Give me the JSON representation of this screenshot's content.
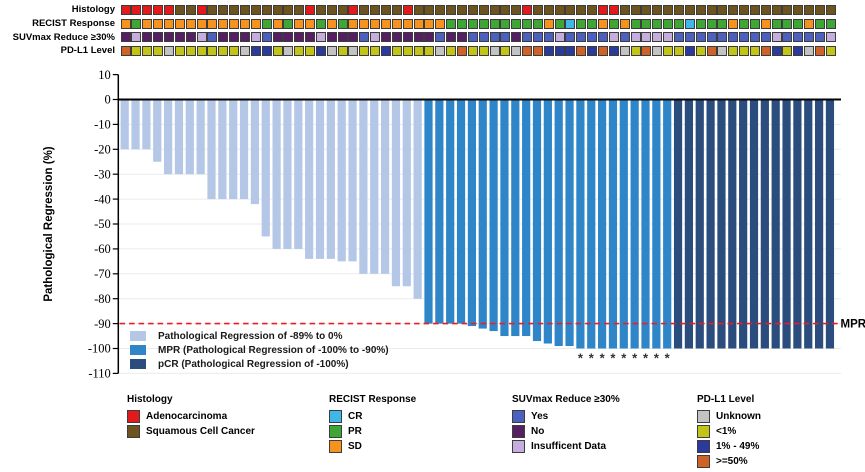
{
  "tracks": {
    "rows": [
      {
        "label": "Histology",
        "legend": 0,
        "values": [
          "A",
          "A",
          "A",
          "A",
          "A",
          "S",
          "S",
          "A",
          "S",
          "S",
          "S",
          "S",
          "S",
          "S",
          "S",
          "S",
          "S",
          "A",
          "S",
          "S",
          "S",
          "A",
          "S",
          "S",
          "S",
          "S",
          "A",
          "S",
          "S",
          "S",
          "S",
          "S",
          "S",
          "S",
          "S",
          "S",
          "S",
          "A",
          "S",
          "S",
          "S",
          "S",
          "S",
          "S",
          "A",
          "A",
          "S",
          "S",
          "S",
          "S",
          "S",
          "S",
          "S",
          "S",
          "S",
          "S",
          "S",
          "S",
          "S",
          "S",
          "S",
          "S",
          "S",
          "S",
          "S",
          "S"
        ]
      },
      {
        "label": "RECIST Response",
        "legend": 1,
        "values": [
          "SD",
          "PR",
          "SD",
          "SD",
          "SD",
          "SD",
          "SD",
          "SD",
          "SD",
          "SD",
          "SD",
          "SD",
          "SD",
          "PR",
          "SD",
          "PR",
          "SD",
          "SD",
          "PR",
          "SD",
          "PR",
          "SD",
          "SD",
          "SD",
          "SD",
          "SD",
          "SD",
          "SD",
          "SD",
          "SD",
          "PR",
          "PR",
          "PR",
          "PR",
          "PR",
          "PR",
          "PR",
          "PR",
          "PR",
          "SD",
          "PR",
          "CR",
          "PR",
          "PR",
          "SD",
          "PR",
          "SD",
          "PR",
          "PR",
          "PR",
          "PR",
          "PR",
          "CR",
          "PR",
          "PR",
          "PR",
          "SD",
          "PR",
          "PR",
          "SD",
          "PR",
          "PR",
          "PR",
          "SD",
          "PR",
          "PR"
        ]
      },
      {
        "label": "SUVmax Reduce ≥30%",
        "legend": 2,
        "values": [
          "N",
          "I",
          "N",
          "N",
          "N",
          "N",
          "N",
          "I",
          "Y",
          "N",
          "N",
          "N",
          "I",
          "Y",
          "N",
          "N",
          "N",
          "N",
          "I",
          "N",
          "N",
          "N",
          "Y",
          "I",
          "N",
          "N",
          "N",
          "N",
          "N",
          "Y",
          "N",
          "N",
          "Y",
          "Y",
          "Y",
          "Y",
          "N",
          "Y",
          "Y",
          "Y",
          "I",
          "Y",
          "Y",
          "Y",
          "Y",
          "I",
          "Y",
          "I",
          "I",
          "I",
          "I",
          "Y",
          "Y",
          "Y",
          "Y",
          "Y",
          "Y",
          "Y",
          "Y",
          "Y",
          "I",
          "Y",
          "Y",
          "Y",
          "Y",
          "I"
        ]
      },
      {
        "label": "PD-L1 Level",
        "legend": 3,
        "values": [
          "H",
          "L",
          "L",
          "L",
          "U",
          "L",
          "L",
          "L",
          "L",
          "L",
          "L",
          "U",
          "M",
          "M",
          "L",
          "U",
          "L",
          "L",
          "M",
          "U",
          "L",
          "U",
          "L",
          "L",
          "M",
          "L",
          "L",
          "L",
          "L",
          "U",
          "L",
          "H",
          "L",
          "L",
          "U",
          "L",
          "U",
          "H",
          "H",
          "M",
          "M",
          "M",
          "H",
          "M",
          "H",
          "M",
          "U",
          "L",
          "H",
          "U",
          "L",
          "L",
          "M",
          "L",
          "H",
          "U",
          "L",
          "L",
          "L",
          "H",
          "M",
          "L",
          "M",
          "U",
          "H",
          "L"
        ]
      }
    ]
  },
  "chart_data": {
    "type": "bar",
    "title": "",
    "xlabel": "",
    "ylabel": "Pathological Regression (%)",
    "ylim": [
      -110,
      10
    ],
    "yticks": [
      10,
      0,
      -10,
      -20,
      -30,
      -40,
      -50,
      -60,
      -70,
      -80,
      -90,
      -100,
      -110
    ],
    "grid": "horizontal-light",
    "n_patients": 66,
    "values": [
      -20,
      -20,
      -20,
      -25,
      -30,
      -30,
      -30,
      -30,
      -40,
      -40,
      -40,
      -40,
      -42,
      -55,
      -60,
      -60,
      -60,
      -64,
      -64,
      -64,
      -65,
      -65,
      -70,
      -70,
      -70,
      -75,
      -75,
      -80,
      -90,
      -90,
      -90,
      -90,
      -91,
      -92,
      -93,
      -95,
      -95,
      -95,
      -97,
      -98,
      -99,
      -99,
      -100,
      -100,
      -100,
      -100,
      -100,
      -100,
      -100,
      -100,
      -100,
      -100,
      -100,
      -100,
      -100,
      -100,
      -100,
      -100,
      -100,
      -100,
      -100,
      -100,
      -100,
      -100,
      -100,
      -100
    ],
    "bar_groups": [
      "L",
      "L",
      "L",
      "L",
      "L",
      "L",
      "L",
      "L",
      "L",
      "L",
      "L",
      "L",
      "L",
      "L",
      "L",
      "L",
      "L",
      "L",
      "L",
      "L",
      "L",
      "L",
      "L",
      "L",
      "L",
      "L",
      "L",
      "L",
      "M",
      "M",
      "M",
      "M",
      "M",
      "M",
      "M",
      "M",
      "M",
      "M",
      "M",
      "M",
      "M",
      "M",
      "M",
      "M",
      "M",
      "M",
      "M",
      "M",
      "M",
      "M",
      "M",
      "D",
      "D",
      "D",
      "D",
      "D",
      "D",
      "D",
      "D",
      "D",
      "D",
      "D",
      "D",
      "D",
      "D",
      "D"
    ],
    "group_colors": {
      "L": "#b4c7e7",
      "M": "#2e86c8",
      "D": "#2b4d7e"
    },
    "series_legend": [
      {
        "code": "L",
        "label": "Pathological Regression of -89% to 0%",
        "color": "#b4c7e7"
      },
      {
        "code": "M",
        "label": "MPR (Pathological Regression of -100% to -90%)",
        "color": "#2e86c8"
      },
      {
        "code": "D",
        "label": "pCR (Pathological Regression of -100%)",
        "color": "#2b4d7e"
      }
    ],
    "reference_line": {
      "value": -90,
      "label": "MPR",
      "color": "#ec1c24",
      "style": "dashed"
    },
    "asterisk_bars": [
      43,
      44,
      45,
      46,
      47,
      48,
      49,
      50,
      51
    ],
    "asterisk_symbol": "*"
  },
  "legends": [
    {
      "title": "Histology",
      "items": [
        {
          "code": "A",
          "label": "Adenocarcinoma",
          "color": "#e31a1c"
        },
        {
          "code": "S",
          "label": "Squamous Cell Cancer",
          "color": "#6d541f"
        }
      ]
    },
    {
      "title": "RECIST Response",
      "items": [
        {
          "code": "CR",
          "label": "CR",
          "color": "#3fb8e8"
        },
        {
          "code": "PR",
          "label": "PR",
          "color": "#3fa535"
        },
        {
          "code": "SD",
          "label": "SD",
          "color": "#f6921e"
        }
      ]
    },
    {
      "title": "SUVmax Reduce ≥30%",
      "items": [
        {
          "code": "Y",
          "label": "Yes",
          "color": "#4c60c0"
        },
        {
          "code": "N",
          "label": "No",
          "color": "#571f63"
        },
        {
          "code": "I",
          "label": "Insufficent Data",
          "color": "#c5aede"
        }
      ]
    },
    {
      "title": "PD-L1 Level",
      "items": [
        {
          "code": "U",
          "label": "Unknown",
          "color": "#c3c3c3"
        },
        {
          "code": "L",
          "label": "<1%",
          "color": "#c2c417"
        },
        {
          "code": "M",
          "label": "1% - 49%",
          "color": "#2b3b9b"
        },
        {
          "code": "H",
          "label": ">=50%",
          "color": "#cf6227"
        }
      ]
    }
  ]
}
